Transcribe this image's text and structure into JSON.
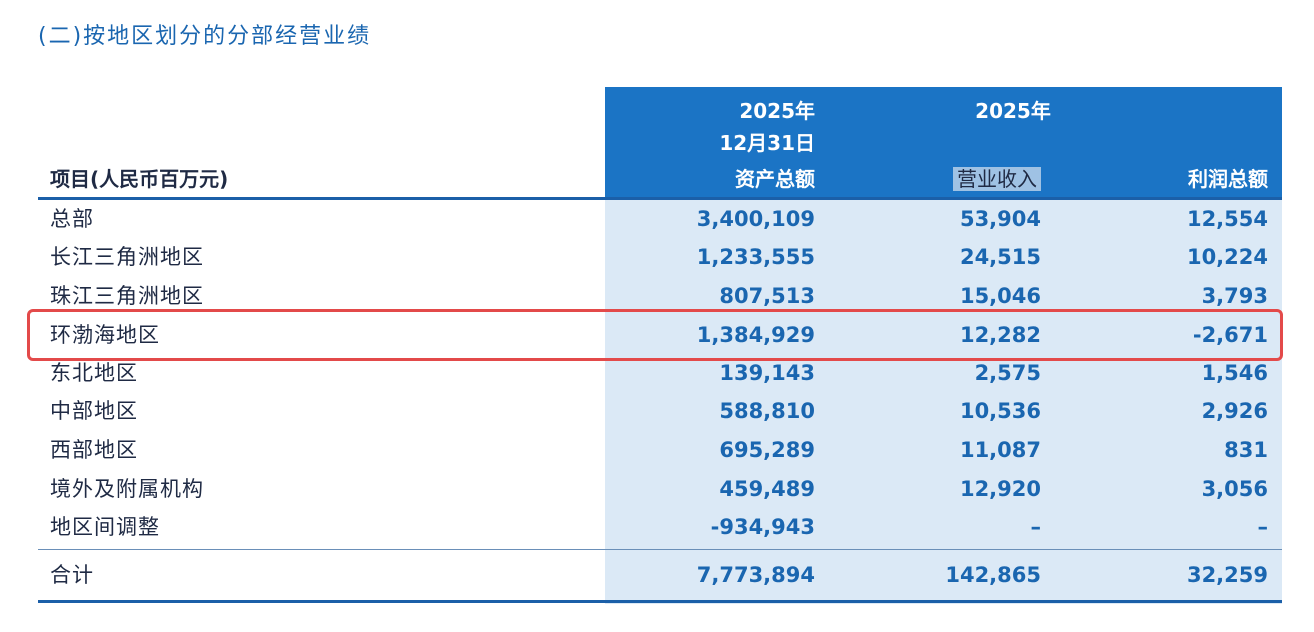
{
  "title": "(二)按地区划分的分部经营业绩",
  "header": {
    "item_label": "项目(人民币百万元)",
    "col1_year": "2025年",
    "col1_date": "12月31日",
    "col1_name": "资产总额",
    "col23_year": "2025年",
    "col2_name": "营业收入",
    "col3_name": "利润总额"
  },
  "rows": [
    {
      "name": "总部",
      "assets": "3,400,109",
      "revenue": "53,904",
      "profit": "12,554"
    },
    {
      "name": "长江三角洲地区",
      "assets": "1,233,555",
      "revenue": "24,515",
      "profit": "10,224"
    },
    {
      "name": "珠江三角洲地区",
      "assets": "807,513",
      "revenue": "15,046",
      "profit": "3,793"
    },
    {
      "name": "环渤海地区",
      "assets": "1,384,929",
      "revenue": "12,282",
      "profit": "-2,671"
    },
    {
      "name": "东北地区",
      "assets": "139,143",
      "revenue": "2,575",
      "profit": "1,546"
    },
    {
      "name": "中部地区",
      "assets": "588,810",
      "revenue": "10,536",
      "profit": "2,926"
    },
    {
      "name": "西部地区",
      "assets": "695,289",
      "revenue": "11,087",
      "profit": "831"
    },
    {
      "name": "境外及附属机构",
      "assets": "459,489",
      "revenue": "12,920",
      "profit": "3,056"
    },
    {
      "name": "地区间调整",
      "assets": "-934,943",
      "revenue": "–",
      "profit": "–"
    }
  ],
  "total": {
    "name": "合计",
    "assets": "7,773,894",
    "revenue": "142,865",
    "profit": "32,259"
  },
  "colors": {
    "header_blue": "#1b74c5",
    "body_blue": "#dbe9f6",
    "number_blue": "#1a66b0",
    "highlight_red": "#e34a4a"
  }
}
